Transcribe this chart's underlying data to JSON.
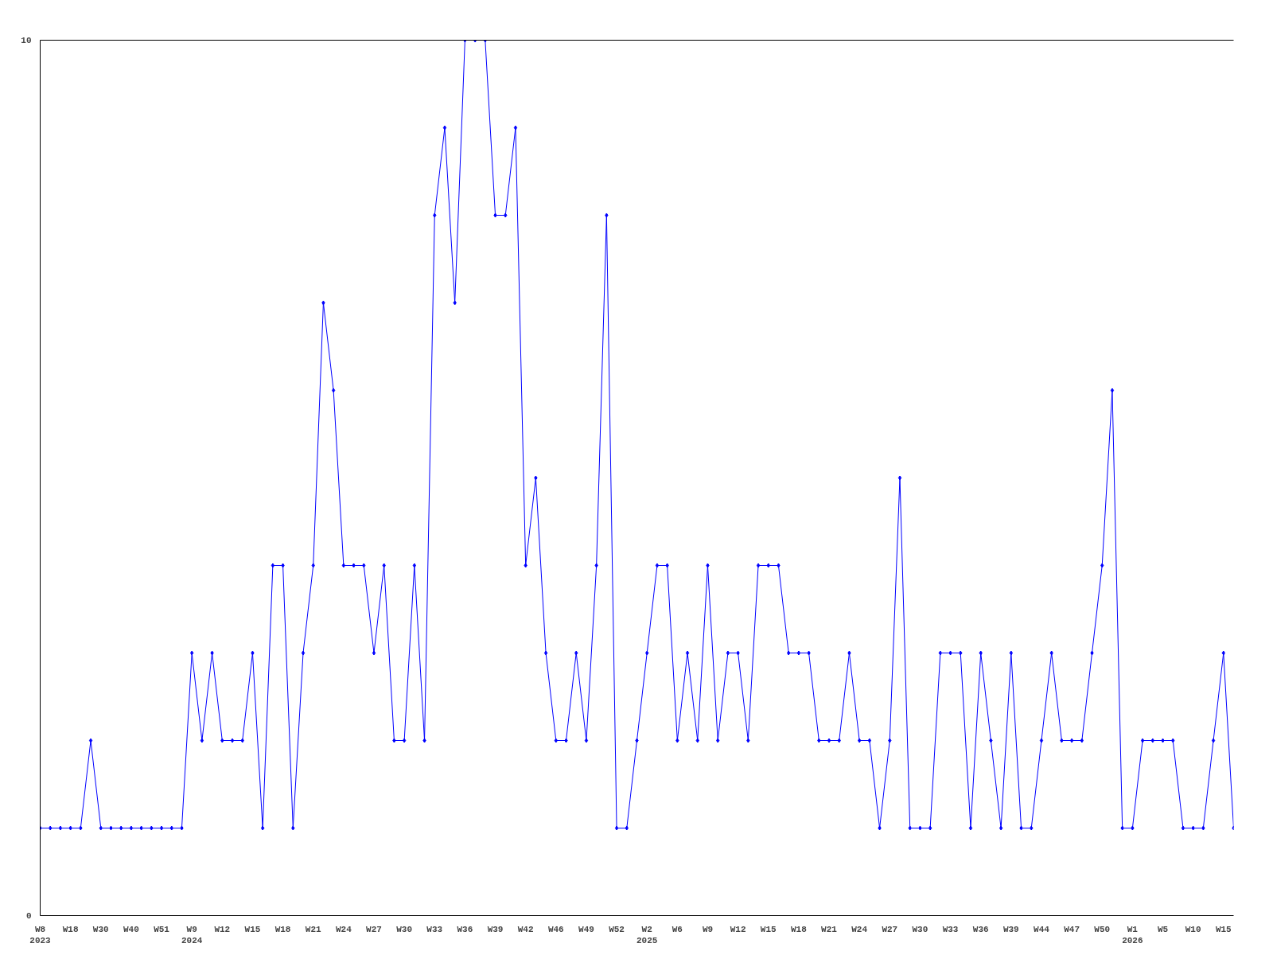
{
  "chart_data": {
    "type": "line",
    "categories": [
      "W8\n2023",
      null,
      null,
      "W18",
      null,
      null,
      "W30",
      null,
      null,
      "W40",
      null,
      null,
      "W51",
      null,
      null,
      "W9\n2024",
      null,
      null,
      "W12",
      null,
      null,
      "W15",
      null,
      null,
      "W18",
      null,
      null,
      "W21",
      null,
      null,
      "W24",
      null,
      null,
      "W27",
      null,
      null,
      "W30",
      null,
      null,
      "W33",
      null,
      null,
      "W36",
      null,
      null,
      "W39",
      null,
      null,
      "W42",
      null,
      null,
      "W46",
      null,
      null,
      "W49",
      null,
      null,
      "W52",
      null,
      null,
      "W2\n2025",
      null,
      null,
      "W6",
      null,
      null,
      "W9",
      null,
      null,
      "W12",
      null,
      null,
      "W15",
      null,
      null,
      "W18",
      null,
      null,
      "W21",
      null,
      null,
      "W24",
      null,
      null,
      "W27",
      null,
      null,
      "W30",
      null,
      null,
      "W33",
      null,
      null,
      "W36",
      null,
      null,
      "W39",
      null,
      null,
      "W44",
      null,
      null,
      "W47",
      null,
      null,
      "W50",
      null,
      null,
      "W1\n2026",
      null,
      null,
      "W5",
      null,
      null,
      "W10",
      null,
      null,
      "W15",
      null
    ],
    "series": [
      {
        "color": "#0000ff",
        "values": [
          1,
          1,
          1,
          1,
          1,
          2,
          1,
          1,
          1,
          1,
          1,
          1,
          1,
          1,
          1,
          3,
          2,
          3,
          2,
          2,
          2,
          3,
          1,
          4,
          4,
          1,
          3,
          4,
          7,
          6,
          4,
          4,
          4,
          3,
          4,
          2,
          2,
          4,
          2,
          8,
          9,
          7,
          10,
          10,
          10,
          8,
          8,
          9,
          4,
          5,
          3,
          2,
          2,
          3,
          2,
          4,
          8,
          1,
          1,
          2,
          3,
          4,
          4,
          2,
          3,
          2,
          4,
          2,
          3,
          3,
          2,
          4,
          4,
          4,
          3,
          3,
          3,
          2,
          2,
          2,
          3,
          2,
          2,
          1,
          2,
          5,
          1,
          1,
          1,
          3,
          3,
          3,
          1,
          3,
          2,
          1,
          3,
          1,
          1,
          2,
          3,
          2,
          2,
          2,
          3,
          4,
          6,
          1,
          1,
          2,
          2,
          2,
          2,
          1,
          1,
          1,
          2,
          3,
          1
        ]
      }
    ],
    "ylim": [
      0,
      10
    ],
    "yticks": [
      0,
      10
    ],
    "marker": "diamond",
    "line_style": "solid"
  }
}
